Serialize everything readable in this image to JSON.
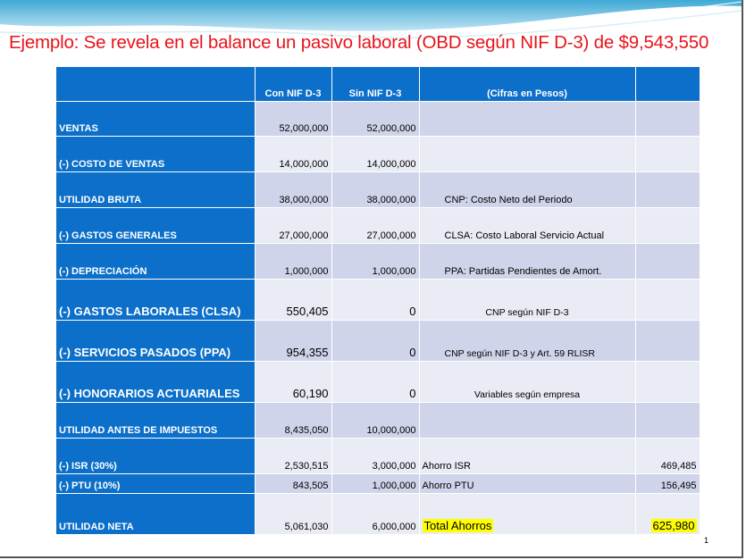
{
  "title": "Ejemplo: Se revela en el balance un pasivo laboral (OBD según NIF D-3) de $9,543,550",
  "table": {
    "headers": [
      "",
      "Con NIF D-3",
      "Sin  NIF  D-3",
      "(Cifras en Pesos)",
      ""
    ],
    "rows": [
      {
        "label": "VENTAS",
        "con": "52,000,000",
        "sin": "52,000,000",
        "note": "",
        "value": ""
      },
      {
        "label": "(-) COSTO DE VENTAS",
        "con": "14,000,000",
        "sin": "14,000,000",
        "note": "",
        "value": ""
      },
      {
        "label": "UTILIDAD BRUTA",
        "con": "38,000,000",
        "sin": "38,000,000",
        "note": "CNP: Costo Neto del Periodo",
        "value": ""
      },
      {
        "label": "(-) GASTOS GENERALES",
        "con": "27,000,000",
        "sin": "27,000,000",
        "note": "CLSA: Costo Laboral Servicio Actual",
        "value": ""
      },
      {
        "label": "(-) DEPRECIACIÓN",
        "con": "1,000,000",
        "sin": "1,000,000",
        "note": "PPA: Partidas Pendientes de Amort.",
        "value": ""
      },
      {
        "label": "(-) GASTOS LABORALES (CLSA)",
        "con": "550,405",
        "sin": "0",
        "note": "CNP según NIF D-3",
        "value": ""
      },
      {
        "label": "(-) SERVICIOS PASADOS (PPA)",
        "con": "954,355",
        "sin": "0",
        "note": "CNP según NIF D-3 y Art. 59 RLISR",
        "value": ""
      },
      {
        "label": "(-) HONORARIOS ACTUARIALES",
        "con": "60,190",
        "sin": "0",
        "note": "Variables según empresa",
        "value": ""
      },
      {
        "label": "UTILIDAD ANTES DE IMPUESTOS",
        "con": "8,435,050",
        "sin": "10,000,000",
        "note": "",
        "value": ""
      },
      {
        "label": "(-) ISR (30%)",
        "con": "2,530,515",
        "sin": "3,000,000",
        "note": "Ahorro ISR",
        "value": "469,485"
      },
      {
        "label": "(-) PTU (10%)",
        "con": "843,505",
        "sin": "1,000,000",
        "note": "Ahorro PTU",
        "value": "156,495"
      },
      {
        "label": "UTILIDAD NETA",
        "con": "5,061,030",
        "sin": "6,000,000",
        "note": "Total Ahorros",
        "value": "625,980"
      }
    ]
  },
  "page_number": "1",
  "colors": {
    "title": "#e8141b",
    "header_blue": "#0c6fc9",
    "row_dark": "#d0d4ea",
    "row_light": "#e9ebf5",
    "highlight": "#ffff00"
  }
}
